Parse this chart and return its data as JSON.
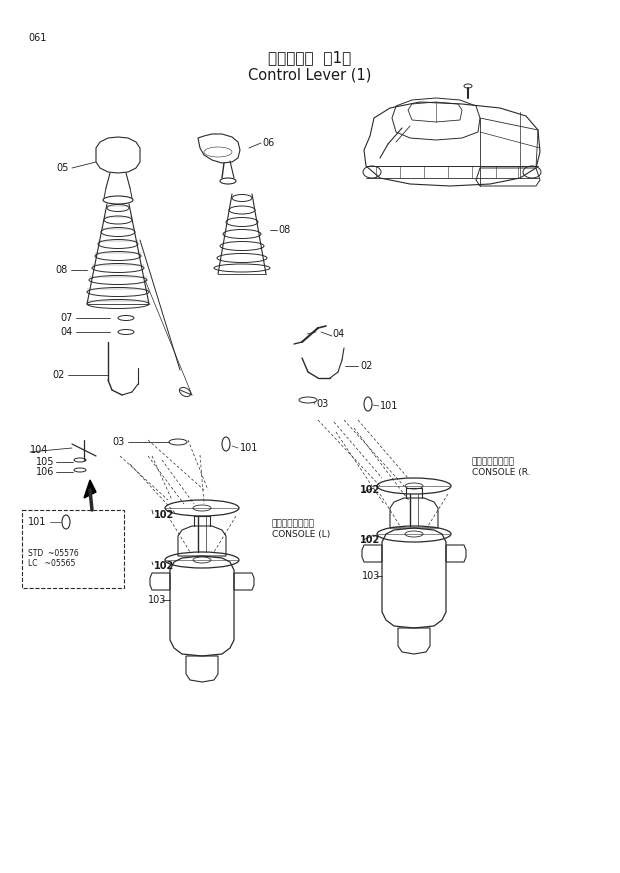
{
  "title_japanese": "操作レバー  （1）",
  "title_english": "Control Lever (1)",
  "page_number": "061",
  "bg_color": "#ffffff",
  "text_color": "#1a1a1a",
  "line_color": "#2a2a2a",
  "figsize": [
    6.2,
    8.73
  ],
  "dpi": 100
}
